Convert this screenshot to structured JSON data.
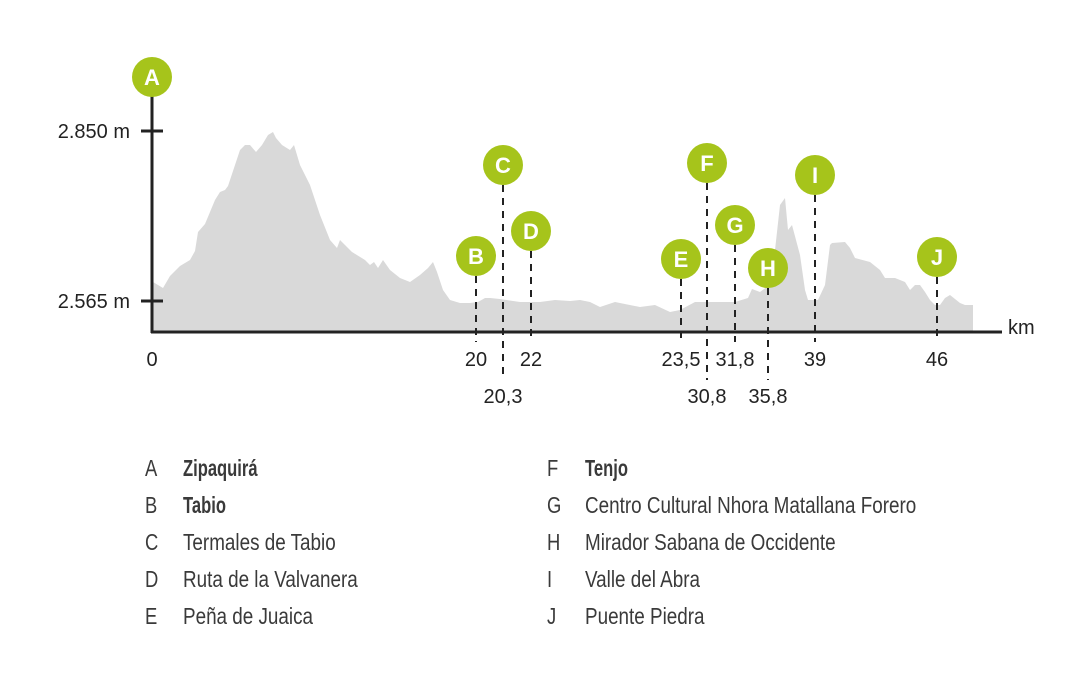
{
  "chart_data": {
    "type": "area",
    "title": "",
    "xlabel": "km",
    "ylabel": "",
    "y_ticks": [
      "2.850 m",
      "2.565 m"
    ],
    "y_tick_values": [
      2850,
      2565
    ],
    "fill_color": "#d9d9d9",
    "marker_color": "#a6c41b",
    "markers": [
      {
        "letter": "A",
        "km": "0",
        "name": "Zipaquirá",
        "bold": true
      },
      {
        "letter": "B",
        "km": "20",
        "name": "Tabio",
        "bold": true
      },
      {
        "letter": "C",
        "km": "20,3",
        "name": "Termales de Tabio",
        "bold": false
      },
      {
        "letter": "D",
        "km": "22",
        "name": "Ruta de la Valvanera",
        "bold": false
      },
      {
        "letter": "E",
        "km": "23,5",
        "name": "Peña de Juaica",
        "bold": false
      },
      {
        "letter": "F",
        "km": "30,8",
        "name": "Tenjo",
        "bold": true
      },
      {
        "letter": "G",
        "km": "31,8",
        "name": "Centro Cultural Nhora Matallana Forero",
        "bold": false
      },
      {
        "letter": "H",
        "km": "35,8",
        "name": "Mirador Sabana de Occidente",
        "bold": false
      },
      {
        "letter": "I",
        "km": "39",
        "name": "Valle del Abra",
        "bold": false
      },
      {
        "letter": "J",
        "km": "46",
        "name": "Puente Piedra",
        "bold": false
      }
    ]
  }
}
